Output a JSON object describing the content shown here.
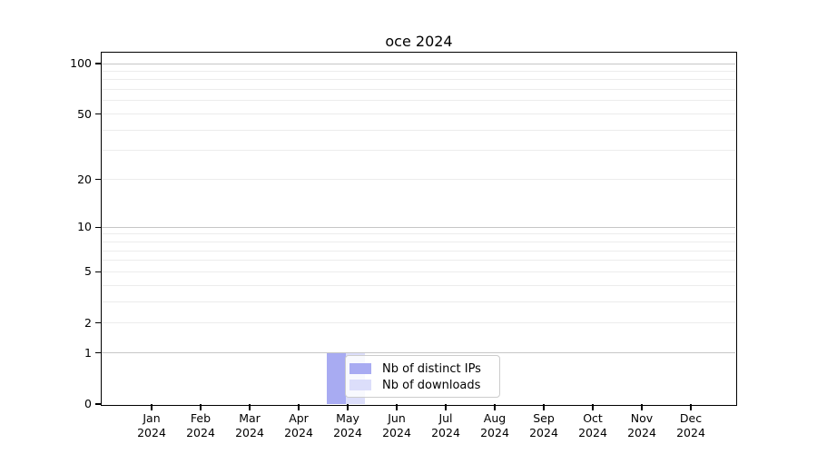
{
  "title": "oce 2024",
  "chart_data": {
    "type": "bar",
    "title": "oce 2024",
    "year_label": "2024",
    "categories": [
      "Jan",
      "Feb",
      "Mar",
      "Apr",
      "May",
      "Jun",
      "Jul",
      "Aug",
      "Sep",
      "Oct",
      "Nov",
      "Dec"
    ],
    "series": [
      {
        "name": "Nb of distinct IPs",
        "values": [
          0,
          0,
          0,
          0,
          1,
          0,
          0,
          0,
          0,
          0,
          0,
          0
        ],
        "color": "#a8abf2"
      },
      {
        "name": "Nb of downloads",
        "values": [
          0,
          0,
          0,
          0,
          1,
          0,
          0,
          0,
          0,
          0,
          0,
          0
        ],
        "color": "#dcdefa"
      }
    ],
    "xlabel": "",
    "ylabel": "",
    "yscale": "log1p",
    "ylim": [
      0,
      117
    ],
    "yticks": [
      100,
      50,
      20,
      10,
      5,
      2,
      1,
      0
    ],
    "gridlines": {
      "major": [
        1,
        10,
        100
      ],
      "minor": [
        2,
        3,
        4,
        5,
        6,
        7,
        8,
        9,
        20,
        30,
        40,
        50,
        60,
        70,
        80,
        90
      ]
    },
    "grid": true,
    "legend_position": "lower-center-inside"
  },
  "legend": {
    "items": [
      {
        "label": "Nb of distinct IPs",
        "color": "#a8abf2"
      },
      {
        "label": "Nb of downloads",
        "color": "#dcdefa"
      }
    ]
  },
  "colors": {
    "background": "#ffffff",
    "axis": "#000000",
    "text": "#000000",
    "grid_major": "#c6c6c6",
    "grid_minor": "#ececec",
    "legend_border": "#cccccc",
    "distinct_ips": "#a8abf2",
    "downloads": "#dcdefa"
  }
}
